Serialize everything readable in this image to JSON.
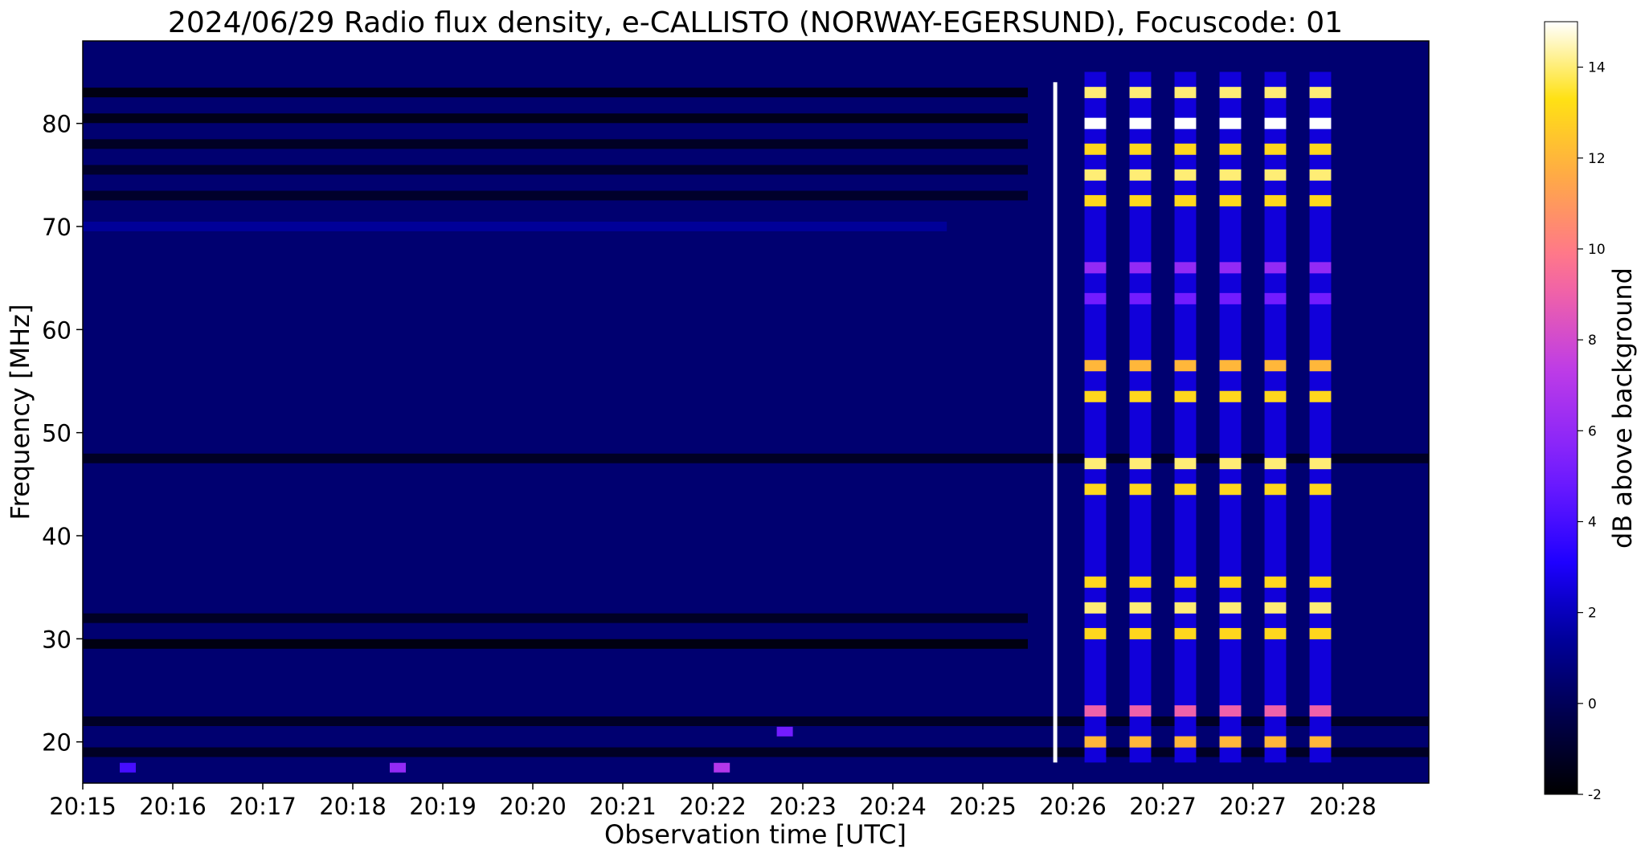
{
  "chart_data": {
    "type": "heatmap",
    "title": "2024/06/29  Radio flux density, e-CALLISTO (NORWAY-EGERSUND), Focuscode: 01",
    "xlabel": "Observation time [UTC]",
    "ylabel": "Frequency [MHz]",
    "x_ticks": [
      "20:15",
      "20:16",
      "20:17",
      "20:18",
      "20:19",
      "20:20",
      "20:21",
      "20:22",
      "20:23",
      "20:24",
      "20:25",
      "20:26",
      "20:27",
      "20:27",
      "20:28"
    ],
    "y_ticks": [
      20,
      30,
      40,
      50,
      60,
      70,
      80
    ],
    "ylim": [
      16,
      88
    ],
    "colorbar": {
      "label": "dB above background",
      "ticks": [
        -2,
        0,
        2,
        4,
        6,
        8,
        10,
        12,
        14
      ],
      "range": [
        -2,
        15
      ],
      "colormap": "gnuplot2"
    },
    "background_level_db": 0.5,
    "dark_bands_mhz": [
      {
        "freq": 83,
        "level": -2.0,
        "until_tick": 10.5
      },
      {
        "freq": 80.5,
        "level": -1.8,
        "until_tick": 10.5
      },
      {
        "freq": 78,
        "level": -1.5,
        "until_tick": 10.5
      },
      {
        "freq": 75.5,
        "level": -1.3,
        "until_tick": 10.5
      },
      {
        "freq": 73,
        "level": -1.3,
        "until_tick": 10.5
      },
      {
        "freq": 70,
        "level": 1.5,
        "until_tick": 9.6
      },
      {
        "freq": 47.5,
        "level": -1.5,
        "until_tick": 15
      },
      {
        "freq": 32,
        "level": -1.5,
        "until_tick": 10.5
      },
      {
        "freq": 29.5,
        "level": -2.0,
        "until_tick": 10.5
      },
      {
        "freq": 22,
        "level": -1.5,
        "until_tick": 15
      },
      {
        "freq": 19,
        "level": -1.5,
        "until_tick": 15
      }
    ],
    "low_freq_bursts": [
      {
        "tick": 0.5,
        "freq": 17.5,
        "level": 4
      },
      {
        "tick": 3.5,
        "freq": 17.5,
        "level": 6
      },
      {
        "tick": 7.1,
        "freq": 17.5,
        "level": 7
      },
      {
        "tick": 7.8,
        "freq": 21,
        "level": 5
      }
    ],
    "spike": {
      "tick": 10.8,
      "freq_range": [
        18,
        84
      ],
      "level": 15
    },
    "interference_columns": {
      "ticks": [
        11.25,
        11.75,
        12.25,
        12.75,
        13.25,
        13.75
      ],
      "width_ticks": 0.24,
      "freq_range": [
        18,
        85
      ],
      "bright_bands": [
        {
          "freq": 83,
          "level": 14
        },
        {
          "freq": 80,
          "level": 15
        },
        {
          "freq": 77.5,
          "level": 13
        },
        {
          "freq": 75,
          "level": 14
        },
        {
          "freq": 72.5,
          "level": 13
        },
        {
          "freq": 66,
          "level": 6
        },
        {
          "freq": 63,
          "level": 5
        },
        {
          "freq": 56.5,
          "level": 12
        },
        {
          "freq": 53.5,
          "level": 13
        },
        {
          "freq": 47,
          "level": 14
        },
        {
          "freq": 44.5,
          "level": 13
        },
        {
          "freq": 35.5,
          "level": 13
        },
        {
          "freq": 33,
          "level": 14
        },
        {
          "freq": 30.5,
          "level": 13
        },
        {
          "freq": 23,
          "level": 9
        },
        {
          "freq": 20,
          "level": 12
        }
      ],
      "base_level": 2.5
    }
  }
}
